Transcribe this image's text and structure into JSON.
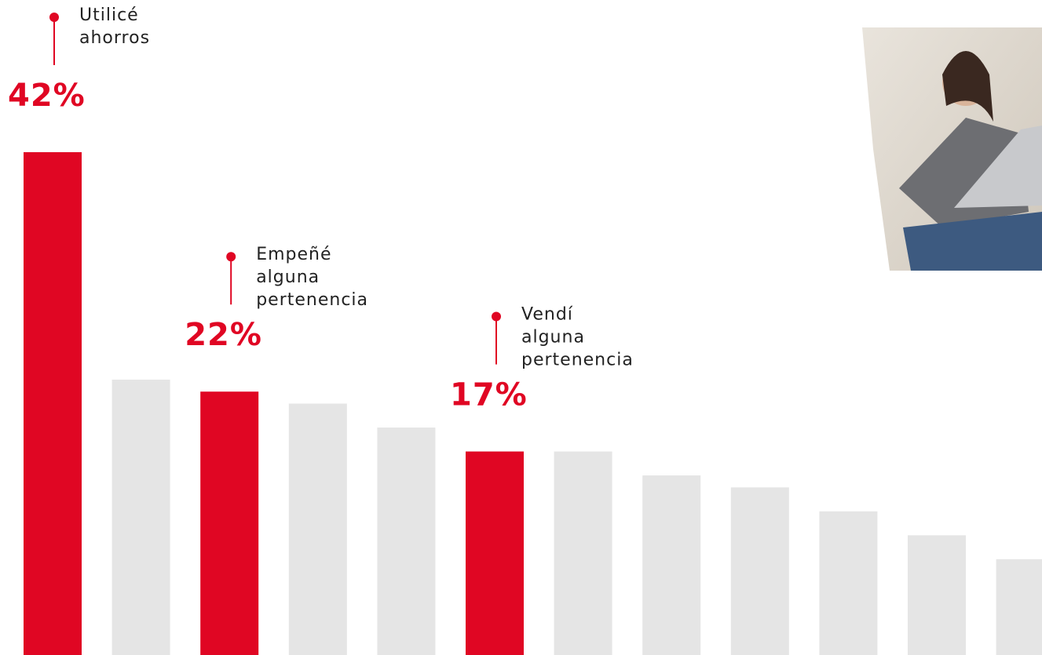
{
  "chart_data": {
    "type": "bar",
    "values": [
      42,
      23,
      22,
      21,
      19,
      17,
      17,
      15,
      14,
      12,
      10,
      8
    ],
    "value_labels": [
      "42%",
      null,
      "22%",
      null,
      null,
      "17%",
      null,
      null,
      null,
      null,
      null,
      null
    ],
    "annotations": [
      [
        "Utilicé",
        "ahorros"
      ],
      null,
      [
        "Empeñé",
        "alguna",
        "pertenencia"
      ],
      null,
      null,
      [
        "Vendí",
        "alguna",
        "pertenencia"
      ],
      null,
      null,
      null,
      null,
      null,
      null
    ],
    "colors": [
      "#e00623",
      "#e5e5e5",
      "#e00623",
      "#e5e5e5",
      "#e5e5e5",
      "#e00623",
      "#e5e5e5",
      "#e5e5e5",
      "#e5e5e5",
      "#e5e5e5",
      "#e5e5e5",
      "#e5e5e5"
    ],
    "ylim": [
      0,
      42
    ]
  }
}
